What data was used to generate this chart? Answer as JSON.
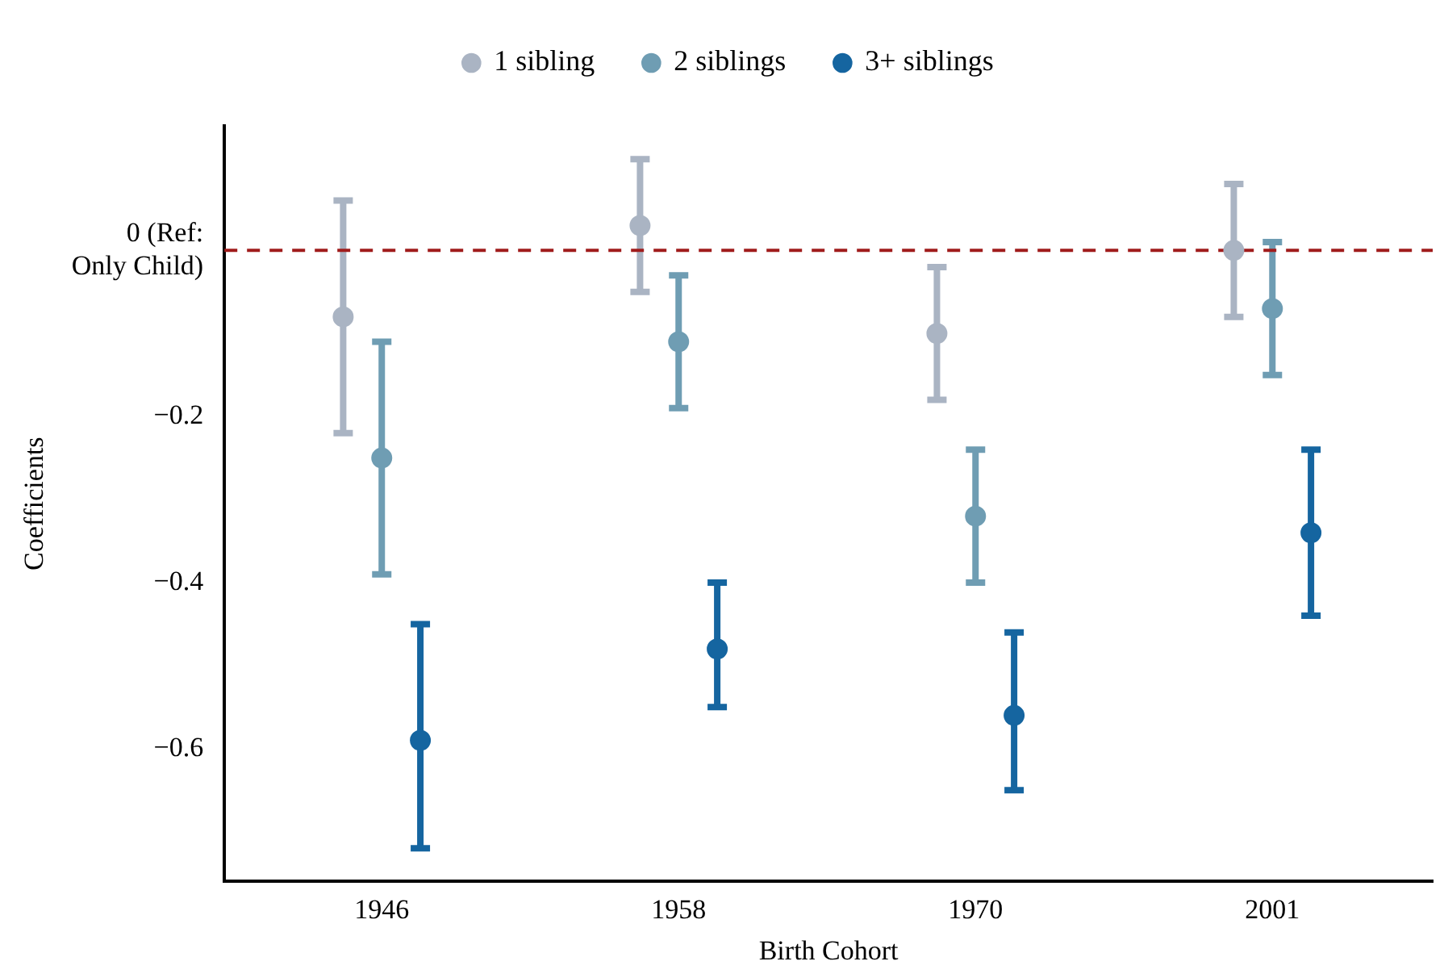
{
  "chart_data": {
    "type": "scatter",
    "xlabel": "Birth Cohort",
    "ylabel": "Coefficients",
    "categories": [
      "1946",
      "1958",
      "1970",
      "2001"
    ],
    "series": [
      {
        "name": "1 sibling",
        "color": "#aab4c3",
        "values": [
          -0.08,
          0.03,
          -0.1,
          0.0
        ],
        "errors": [
          [
            -0.22,
            0.06
          ],
          [
            -0.05,
            0.11
          ],
          [
            -0.18,
            -0.02
          ],
          [
            -0.08,
            0.08
          ]
        ]
      },
      {
        "name": "2 siblings",
        "color": "#6f9db3",
        "values": [
          -0.25,
          -0.11,
          -0.32,
          -0.07
        ],
        "errors": [
          [
            -0.39,
            -0.11
          ],
          [
            -0.19,
            -0.03
          ],
          [
            -0.4,
            -0.24
          ],
          [
            -0.15,
            0.01
          ]
        ]
      },
      {
        "name": "3+ siblings",
        "color": "#1565a0",
        "values": [
          -0.59,
          -0.48,
          -0.56,
          -0.34
        ],
        "errors": [
          [
            -0.72,
            -0.45
          ],
          [
            -0.55,
            -0.4
          ],
          [
            -0.65,
            -0.46
          ],
          [
            -0.44,
            -0.24
          ]
        ]
      }
    ],
    "ylim": [
      -0.76,
      0.15
    ],
    "yticks": [
      {
        "value": 0,
        "label": "0 (Ref: Only Child)"
      },
      -0.2,
      -0.4,
      -0.6
    ],
    "ref_lines": [
      {
        "axis": "y",
        "value": 0,
        "color": "#a01c1c",
        "line_style": "dashed"
      }
    ],
    "grid": false,
    "legend": "top",
    "marker": "circle"
  }
}
